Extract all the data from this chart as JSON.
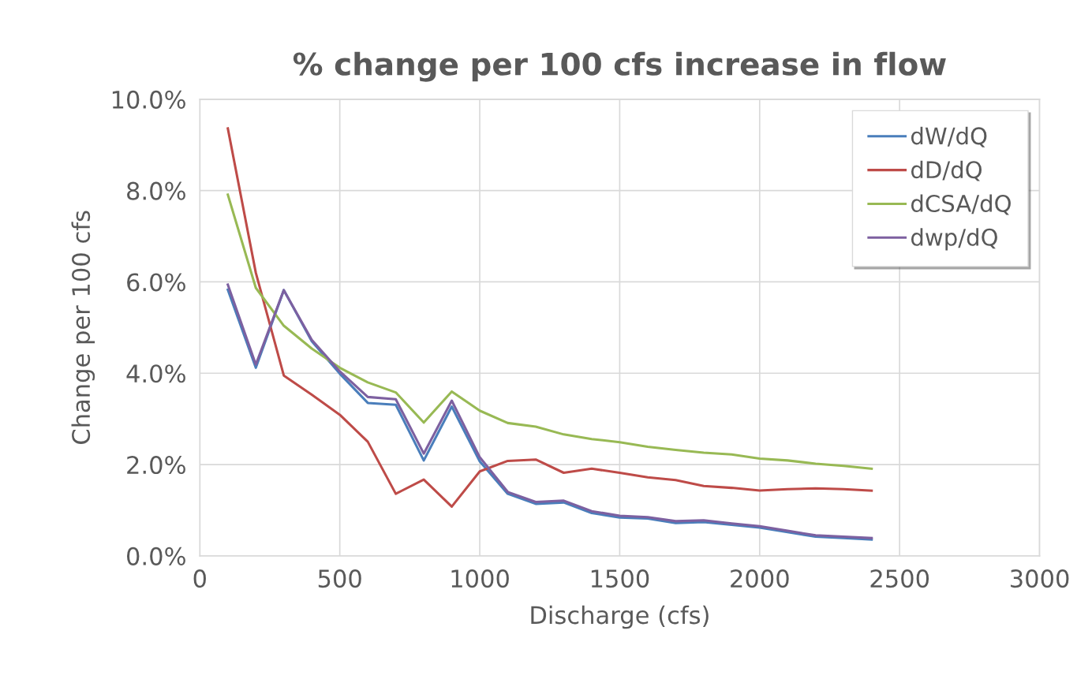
{
  "chart_data": {
    "type": "line",
    "title": "% change per 100 cfs increase in flow",
    "xlabel": "Discharge (cfs)",
    "ylabel": "Change per 100 cfs",
    "x": [
      100,
      200,
      300,
      400,
      500,
      600,
      700,
      800,
      900,
      1000,
      1100,
      1200,
      1300,
      1400,
      1500,
      1600,
      1700,
      1800,
      1900,
      2000,
      2100,
      2200,
      2300,
      2400
    ],
    "series": [
      {
        "name": "dW/dQ",
        "color": "#4a7ebb",
        "values": [
          5.83,
          4.12,
          5.82,
          4.7,
          3.99,
          3.35,
          3.31,
          2.09,
          3.27,
          2.07,
          1.36,
          1.14,
          1.17,
          0.94,
          0.84,
          0.82,
          0.72,
          0.74,
          0.68,
          0.62,
          0.52,
          0.42,
          0.39,
          0.36
        ]
      },
      {
        "name": "dD/dQ",
        "color": "#be4b48",
        "values": [
          9.36,
          6.2,
          3.95,
          3.53,
          3.09,
          2.5,
          1.36,
          1.67,
          1.08,
          1.85,
          2.08,
          2.11,
          1.82,
          1.91,
          1.82,
          1.72,
          1.66,
          1.53,
          1.49,
          1.43,
          1.46,
          1.48,
          1.46,
          1.43
        ]
      },
      {
        "name": "dCSA/dQ",
        "color": "#98b954",
        "values": [
          7.91,
          5.87,
          5.04,
          4.54,
          4.12,
          3.8,
          3.58,
          2.92,
          3.6,
          3.18,
          2.91,
          2.83,
          2.66,
          2.56,
          2.49,
          2.39,
          2.32,
          2.26,
          2.22,
          2.13,
          2.09,
          2.02,
          1.97,
          1.91
        ]
      },
      {
        "name": "dwp/dQ",
        "color": "#7d60a0",
        "values": [
          5.94,
          4.19,
          5.82,
          4.73,
          4.04,
          3.48,
          3.43,
          2.24,
          3.4,
          2.16,
          1.4,
          1.18,
          1.21,
          0.98,
          0.88,
          0.85,
          0.76,
          0.78,
          0.71,
          0.65,
          0.55,
          0.45,
          0.42,
          0.39
        ]
      }
    ],
    "xlim": [
      0,
      3000
    ],
    "xticks": [
      0,
      500,
      1000,
      1500,
      2000,
      2500,
      3000
    ],
    "ylim": [
      0,
      10
    ],
    "yticks": [
      {
        "value": 0,
        "label": "0.0%"
      },
      {
        "value": 2,
        "label": "2.0%"
      },
      {
        "value": 4,
        "label": "4.0%"
      },
      {
        "value": 6,
        "label": "6.0%"
      },
      {
        "value": 8,
        "label": "8.0%"
      },
      {
        "value": 10,
        "label": "10.0%"
      }
    ],
    "grid": true,
    "legend": "top right",
    "marker": "none",
    "line_style": "solid"
  }
}
